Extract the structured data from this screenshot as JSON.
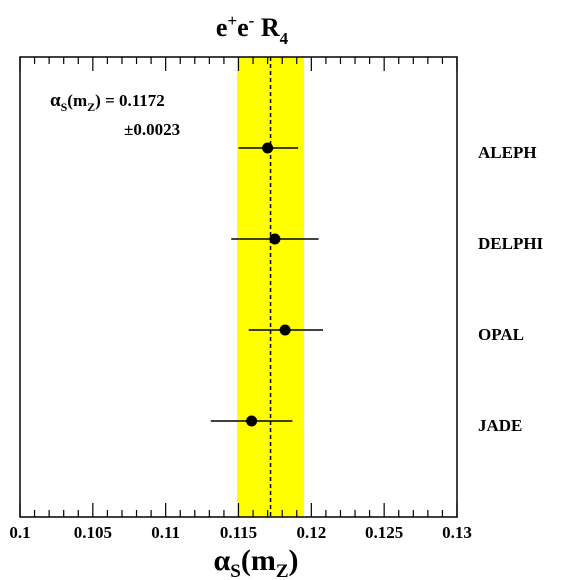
{
  "chart_data": {
    "type": "scatter",
    "title": "e⁺e⁻ R₄",
    "title_parts": {
      "base1": "e",
      "sup1": "+",
      "base2": "e",
      "sup2": "-",
      "base3": " R",
      "sub3": "4"
    },
    "xlabel": "αS(mZ)",
    "xlabel_parts": {
      "alpha": "α",
      "sub1": "S",
      "mid": "(m",
      "sub2": "Z",
      "close": ")"
    },
    "xlim": [
      0.1,
      0.13
    ],
    "x_ticks": [
      "0.1",
      "0.105",
      "0.11",
      "0.115",
      "0.12",
      "0.125",
      "0.13"
    ],
    "x_tick_values": [
      0.1,
      0.105,
      0.11,
      0.115,
      0.12,
      0.125,
      0.13
    ],
    "points": [
      {
        "label": "ALEPH",
        "value": 0.117,
        "err_low": 0.002,
        "err_high": 0.0021
      },
      {
        "label": "DELPHI",
        "value": 0.1175,
        "err_low": 0.003,
        "err_high": 0.003
      },
      {
        "label": "OPAL",
        "value": 0.1182,
        "err_low": 0.0025,
        "err_high": 0.0026
      },
      {
        "label": "JADE",
        "value": 0.1159,
        "err_low": 0.0028,
        "err_high": 0.0028
      }
    ],
    "average": {
      "value": 0.1172,
      "error": 0.0023
    },
    "annotation": {
      "alpha": "α",
      "sub1": "S",
      "mid": "(m",
      "sub2": "Z",
      "close": ")",
      "eq": " = 0.1172",
      "err": "±0.0023"
    },
    "band_color": "#ffff00",
    "grid": false
  }
}
